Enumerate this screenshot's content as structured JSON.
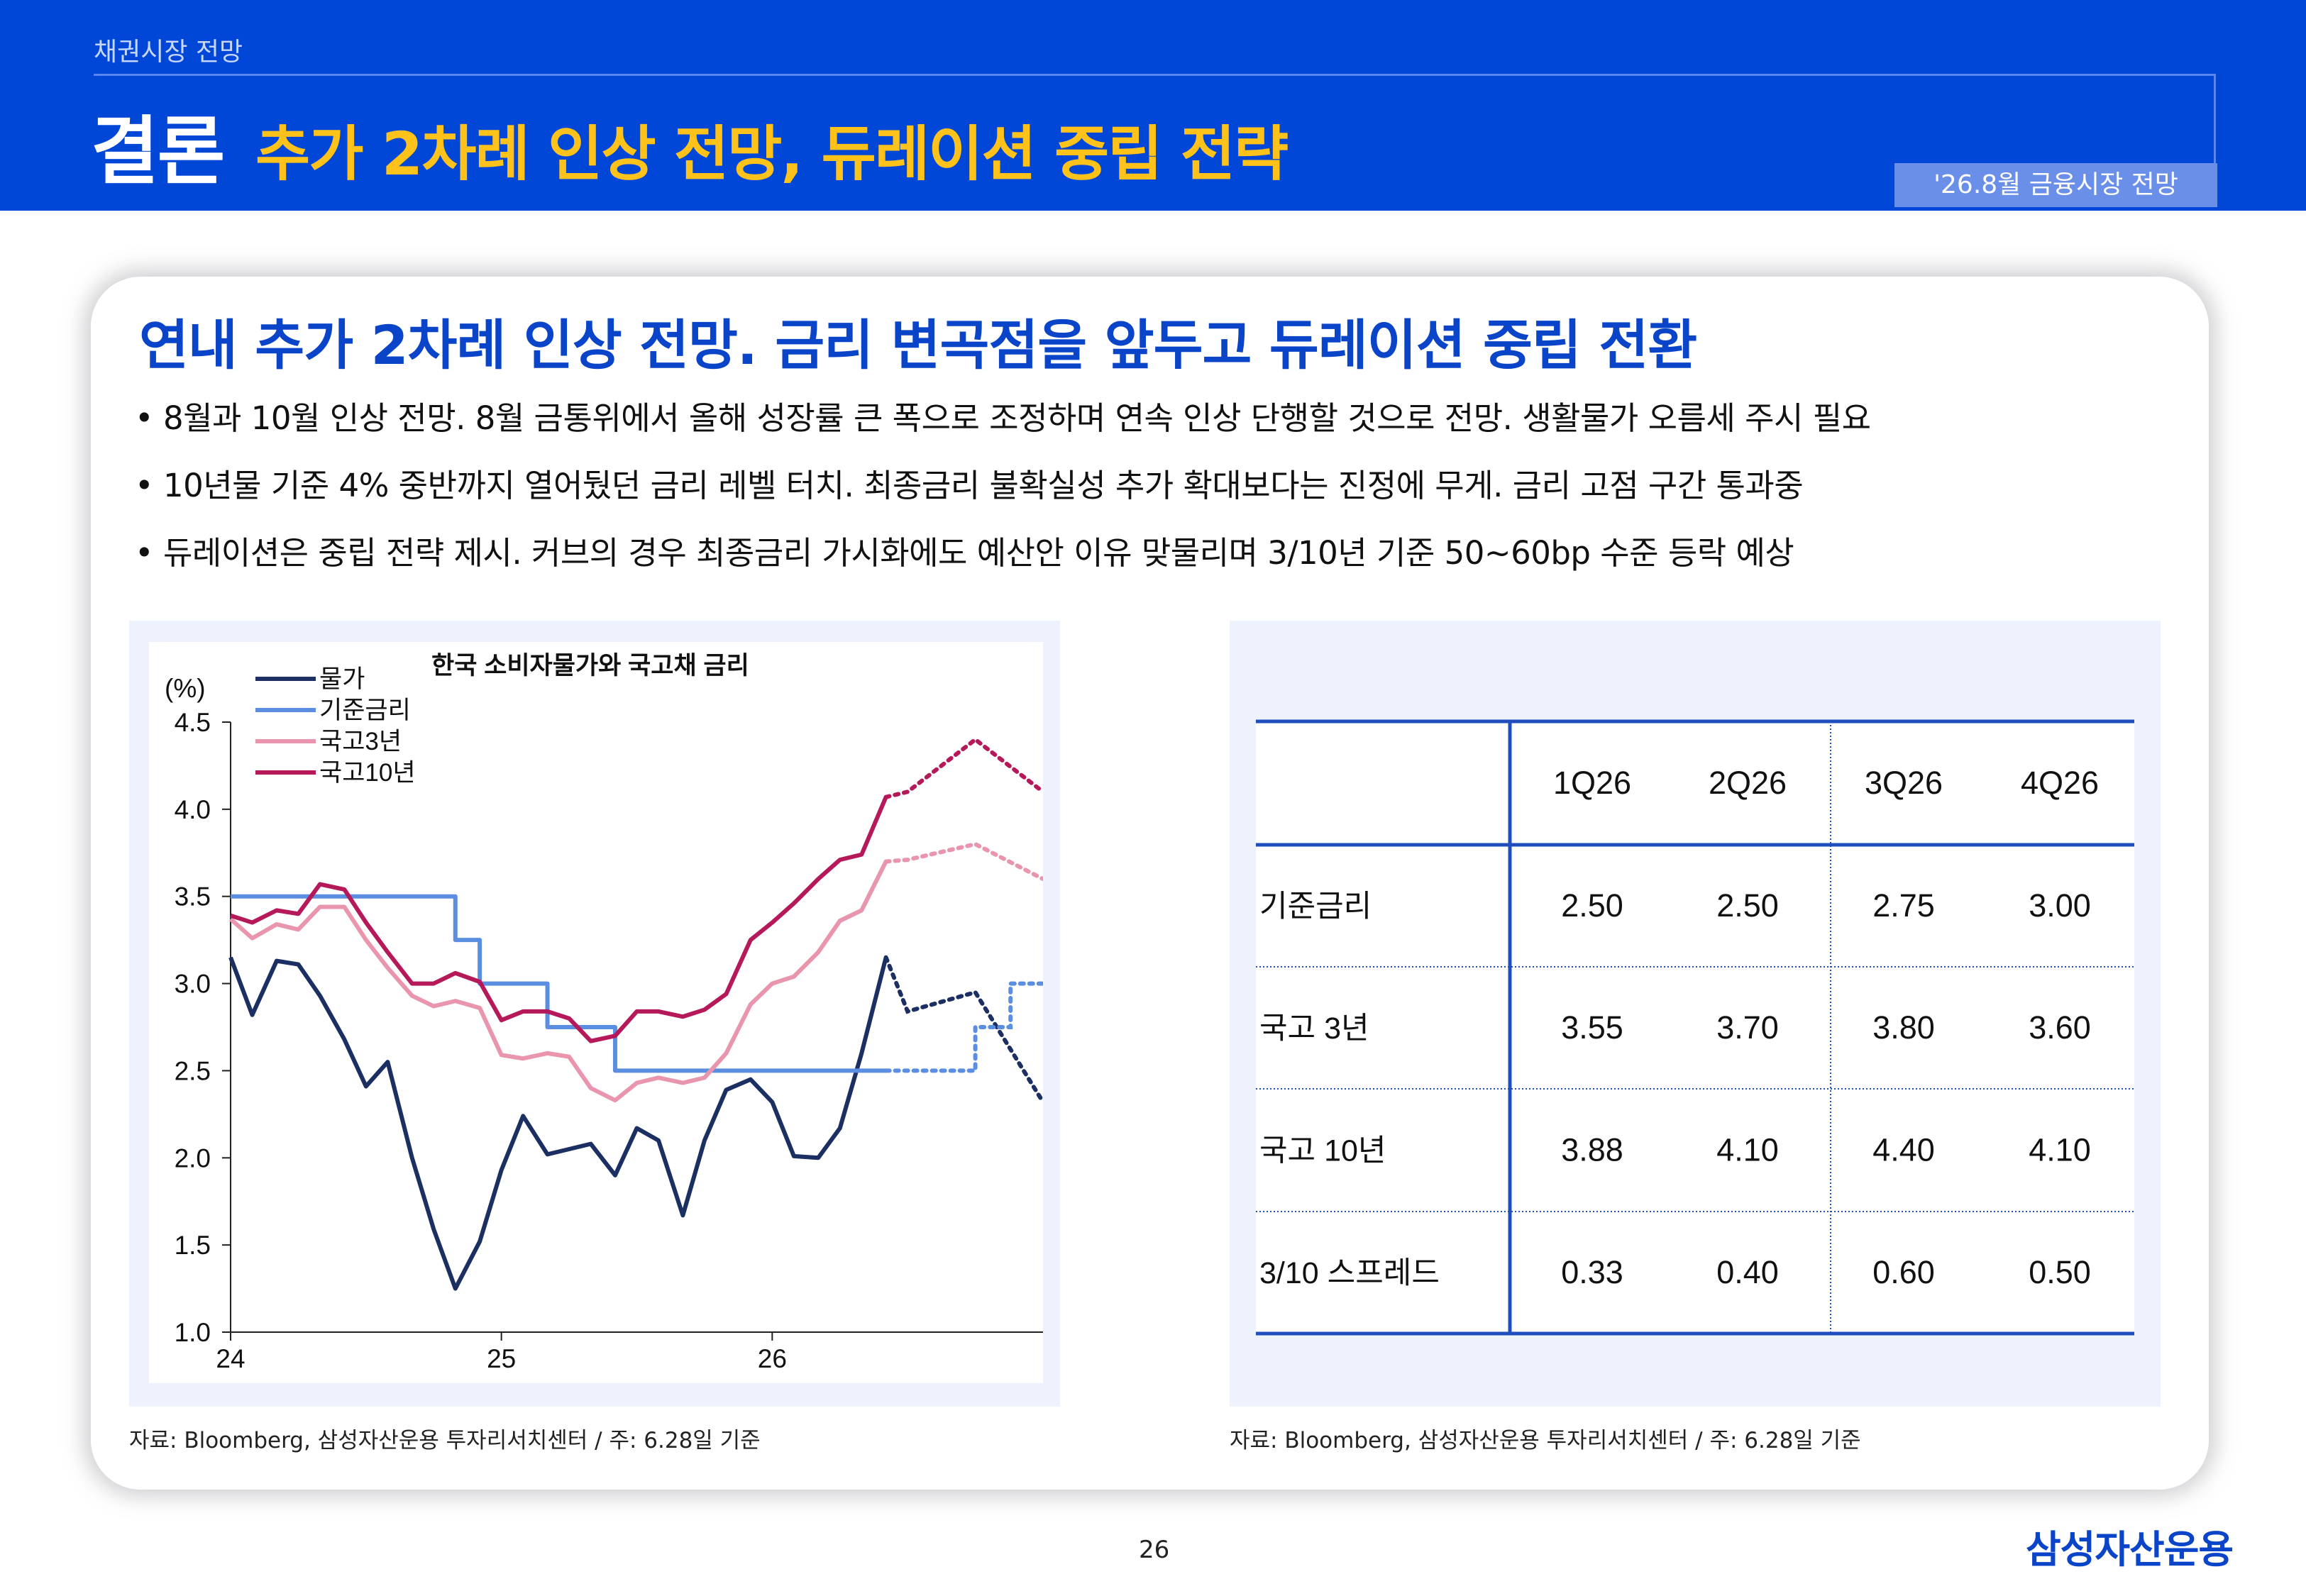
{
  "header": {
    "section": "채권시장 전망",
    "title_main": "결론",
    "title_sub": "추가 2차례 인상 전망, 듀레이션 중립 전략",
    "date_tag": "'26.8월 금융시장 전망"
  },
  "headline": "연내 추가 2차례 인상 전망. 금리 변곡점을 앞두고 듀레이션 중립 전환",
  "bullets": [
    "8월과 10월 인상 전망. 8월 금통위에서 올해 성장률 큰 폭으로 조정하며 연속 인상 단행할 것으로 전망. 생활물가 오름세 주시 필요",
    "10년물 기준 4% 중반까지 열어뒀던 금리 레벨 터치. 최종금리 불확실성 추가 확대보다는 진정에 무게. 금리 고점 구간 통과중",
    "듀레이션은 중립 전략 제시. 커브의 경우 최종금리 가시화에도 예산안 이유 맞물리며 3/10년 기준 50~60bp 수준 등락 예상"
  ],
  "bullet_symbol": "•",
  "chart_data": {
    "type": "line",
    "title": "한국 소비자물가와 국고채 금리",
    "ylabel": "(%)",
    "ylim": [
      1.0,
      4.5
    ],
    "yticks": [
      "1.0",
      "1.5",
      "2.0",
      "2.5",
      "3.0",
      "3.5",
      "4.0",
      "4.5"
    ],
    "xlim": [
      24.0,
      27.0
    ],
    "xticks": [
      {
        "value": 24,
        "label": "24"
      },
      {
        "value": 25,
        "label": "25"
      },
      {
        "value": 26,
        "label": "26"
      }
    ],
    "legend_position": "top-left",
    "series": [
      {
        "name": "물가",
        "color": "#1b2f63",
        "points": [
          [
            24.0,
            3.15
          ],
          [
            24.08,
            2.82
          ],
          [
            24.17,
            3.13
          ],
          [
            24.25,
            3.11
          ],
          [
            24.33,
            2.93
          ],
          [
            24.42,
            2.68
          ],
          [
            24.5,
            2.41
          ],
          [
            24.58,
            2.55
          ],
          [
            24.67,
            2.0
          ],
          [
            24.75,
            1.59
          ],
          [
            24.83,
            1.25
          ],
          [
            24.92,
            1.52
          ],
          [
            25.0,
            1.93
          ],
          [
            25.08,
            2.24
          ],
          [
            25.17,
            2.02
          ],
          [
            25.25,
            2.05
          ],
          [
            25.33,
            2.08
          ],
          [
            25.42,
            1.9
          ],
          [
            25.5,
            2.17
          ],
          [
            25.58,
            2.1
          ],
          [
            25.67,
            1.67
          ],
          [
            25.75,
            2.1
          ],
          [
            25.83,
            2.39
          ],
          [
            25.92,
            2.45
          ],
          [
            26.0,
            2.32
          ],
          [
            26.08,
            2.01
          ],
          [
            26.17,
            2.0
          ],
          [
            26.25,
            2.17
          ],
          [
            26.33,
            2.6
          ],
          [
            26.42,
            3.15
          ]
        ],
        "forecast": [
          [
            26.42,
            3.15
          ],
          [
            26.5,
            2.84
          ],
          [
            26.75,
            2.95
          ],
          [
            27.0,
            2.32
          ]
        ]
      },
      {
        "name": "기준금리",
        "color": "#5b8ee0",
        "points": [
          [
            24.0,
            3.5
          ],
          [
            24.83,
            3.5
          ],
          [
            24.83,
            3.25
          ],
          [
            24.92,
            3.25
          ],
          [
            24.92,
            3.0
          ],
          [
            25.17,
            3.0
          ],
          [
            25.17,
            2.75
          ],
          [
            25.42,
            2.75
          ],
          [
            25.42,
            2.5
          ],
          [
            26.42,
            2.5
          ]
        ],
        "forecast": [
          [
            26.42,
            2.5
          ],
          [
            26.75,
            2.5
          ],
          [
            26.75,
            2.75
          ],
          [
            26.88,
            2.75
          ],
          [
            26.88,
            3.0
          ],
          [
            27.0,
            3.0
          ]
        ]
      },
      {
        "name": "국고3년",
        "color": "#e895ad",
        "points": [
          [
            24.0,
            3.37
          ],
          [
            24.08,
            3.26
          ],
          [
            24.17,
            3.34
          ],
          [
            24.25,
            3.31
          ],
          [
            24.33,
            3.44
          ],
          [
            24.42,
            3.44
          ],
          [
            24.5,
            3.25
          ],
          [
            24.58,
            3.09
          ],
          [
            24.67,
            2.93
          ],
          [
            24.75,
            2.87
          ],
          [
            24.83,
            2.9
          ],
          [
            24.92,
            2.86
          ],
          [
            25.0,
            2.59
          ],
          [
            25.08,
            2.57
          ],
          [
            25.17,
            2.6
          ],
          [
            25.25,
            2.58
          ],
          [
            25.33,
            2.4
          ],
          [
            25.42,
            2.33
          ],
          [
            25.5,
            2.43
          ],
          [
            25.58,
            2.46
          ],
          [
            25.67,
            2.43
          ],
          [
            25.75,
            2.46
          ],
          [
            25.83,
            2.6
          ],
          [
            25.92,
            2.88
          ],
          [
            26.0,
            3.0
          ],
          [
            26.08,
            3.04
          ],
          [
            26.17,
            3.18
          ],
          [
            26.25,
            3.36
          ],
          [
            26.33,
            3.42
          ],
          [
            26.42,
            3.7
          ]
        ],
        "forecast": [
          [
            26.42,
            3.7
          ],
          [
            26.5,
            3.71
          ],
          [
            26.75,
            3.8
          ],
          [
            27.0,
            3.6
          ]
        ]
      },
      {
        "name": "국고10년",
        "color": "#b5195a",
        "points": [
          [
            24.0,
            3.39
          ],
          [
            24.08,
            3.35
          ],
          [
            24.17,
            3.42
          ],
          [
            24.25,
            3.4
          ],
          [
            24.33,
            3.57
          ],
          [
            24.42,
            3.54
          ],
          [
            24.5,
            3.35
          ],
          [
            24.58,
            3.18
          ],
          [
            24.67,
            3.0
          ],
          [
            24.75,
            3.0
          ],
          [
            24.83,
            3.06
          ],
          [
            24.92,
            3.01
          ],
          [
            25.0,
            2.79
          ],
          [
            25.08,
            2.84
          ],
          [
            25.17,
            2.84
          ],
          [
            25.25,
            2.8
          ],
          [
            25.33,
            2.67
          ],
          [
            25.42,
            2.7
          ],
          [
            25.5,
            2.84
          ],
          [
            25.58,
            2.84
          ],
          [
            25.67,
            2.81
          ],
          [
            25.75,
            2.85
          ],
          [
            25.83,
            2.94
          ],
          [
            25.92,
            3.25
          ],
          [
            26.0,
            3.35
          ],
          [
            26.08,
            3.46
          ],
          [
            26.17,
            3.6
          ],
          [
            26.25,
            3.71
          ],
          [
            26.33,
            3.74
          ],
          [
            26.42,
            4.07
          ]
        ],
        "forecast": [
          [
            26.42,
            4.07
          ],
          [
            26.5,
            4.1
          ],
          [
            26.75,
            4.4
          ],
          [
            27.0,
            4.1
          ]
        ]
      }
    ]
  },
  "table": {
    "columns": [
      "",
      "1Q26",
      "2Q26",
      "3Q26",
      "4Q26"
    ],
    "rows": [
      {
        "label": "기준금리",
        "values": [
          "2.50",
          "2.50",
          "2.75",
          "3.00"
        ]
      },
      {
        "label": "국고 3년",
        "values": [
          "3.55",
          "3.70",
          "3.80",
          "3.60"
        ]
      },
      {
        "label": "국고 10년",
        "values": [
          "3.88",
          "4.10",
          "4.40",
          "4.10"
        ]
      },
      {
        "label": "3/10 스프레드",
        "values": [
          "0.33",
          "0.40",
          "0.60",
          "0.50"
        ]
      }
    ],
    "border_color": "#1f4fbf"
  },
  "source_left": "자료: Bloomberg, 삼성자산운용 투자리서치센터 / 주: 6.28일 기준",
  "source_right": "자료: Bloomberg, 삼성자산운용 투자리서치센터 / 주: 6.28일 기준",
  "page_number": "26",
  "brand": "삼성자산운용"
}
